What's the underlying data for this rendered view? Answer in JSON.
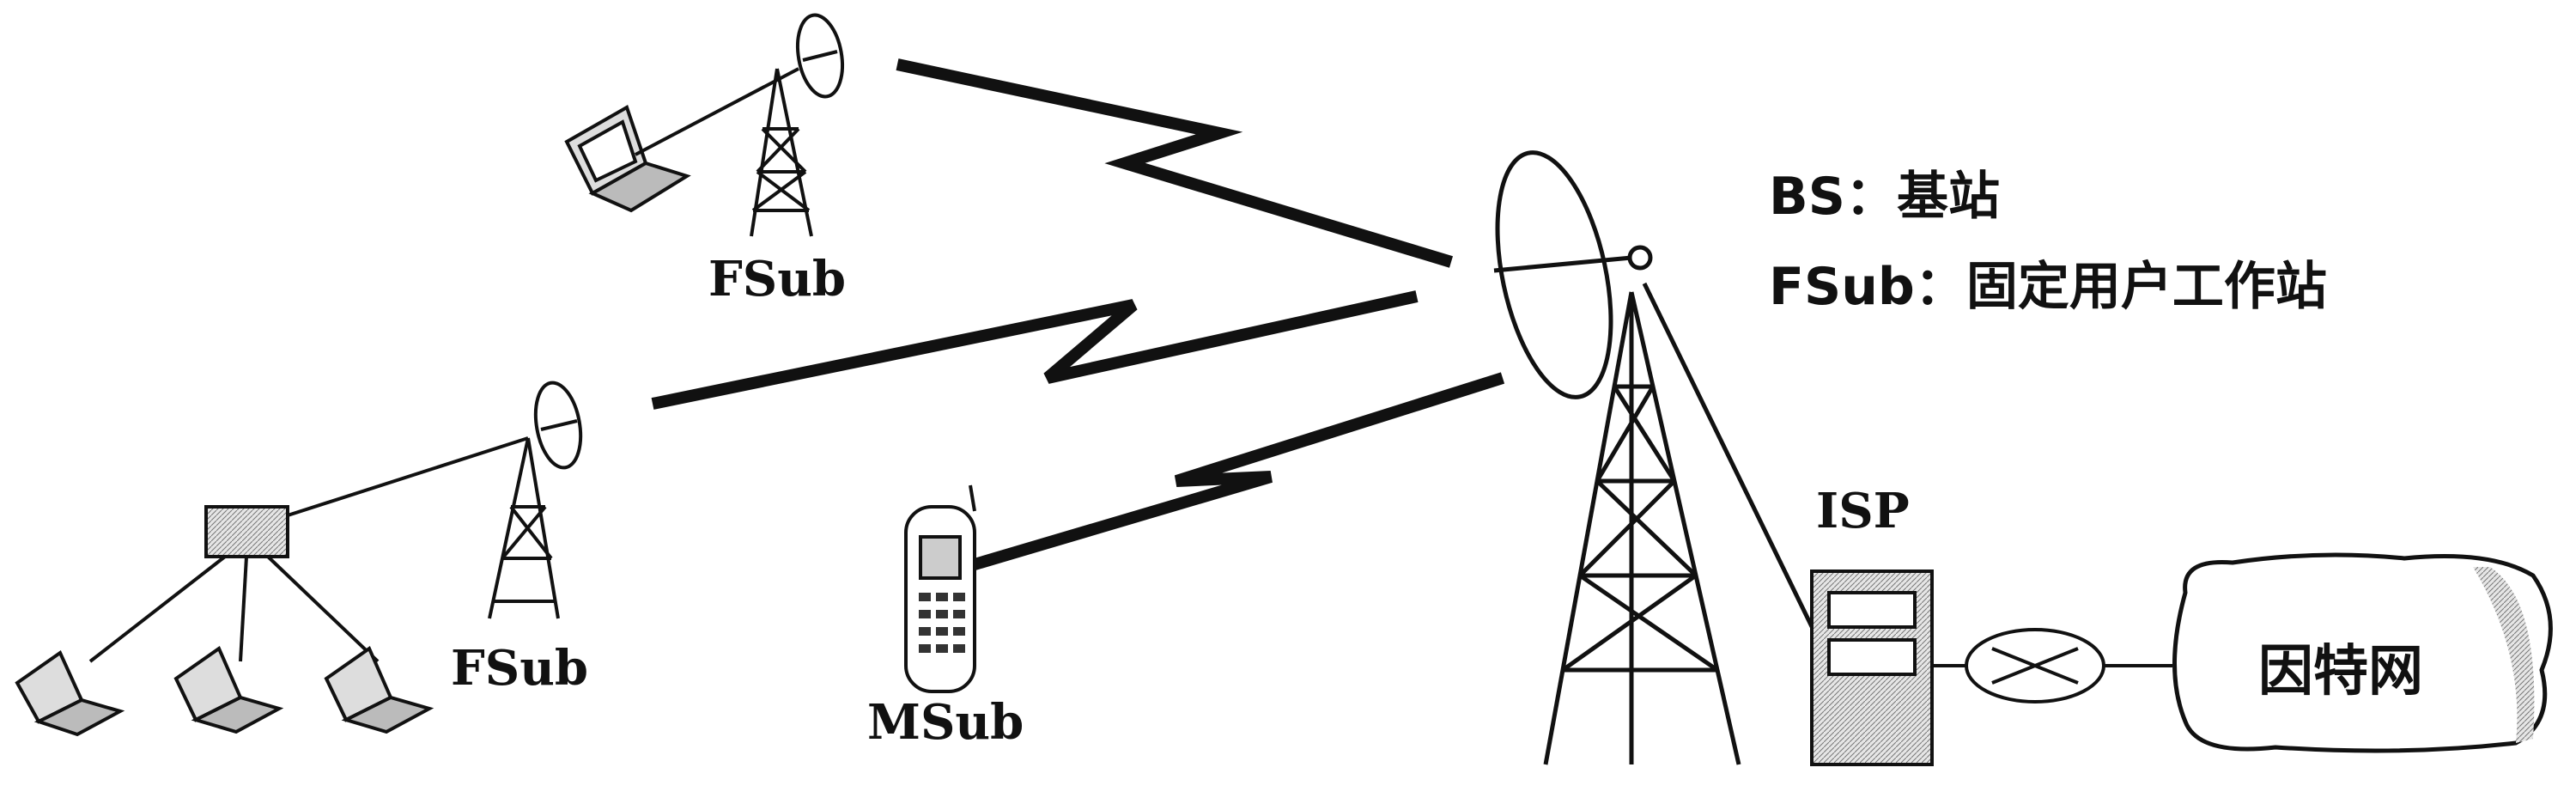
{
  "labels": {
    "fsub_top": "FSub",
    "fsub_left": "FSub",
    "msub": "MSub",
    "isp": "ISP",
    "internet": "因特网"
  },
  "legend": {
    "line1": "BS：基站",
    "line2": "FSub：固定用户工作站"
  },
  "colors": {
    "ink": "#111111",
    "screen": "#cfcfcf",
    "paper": "#ffffff"
  }
}
